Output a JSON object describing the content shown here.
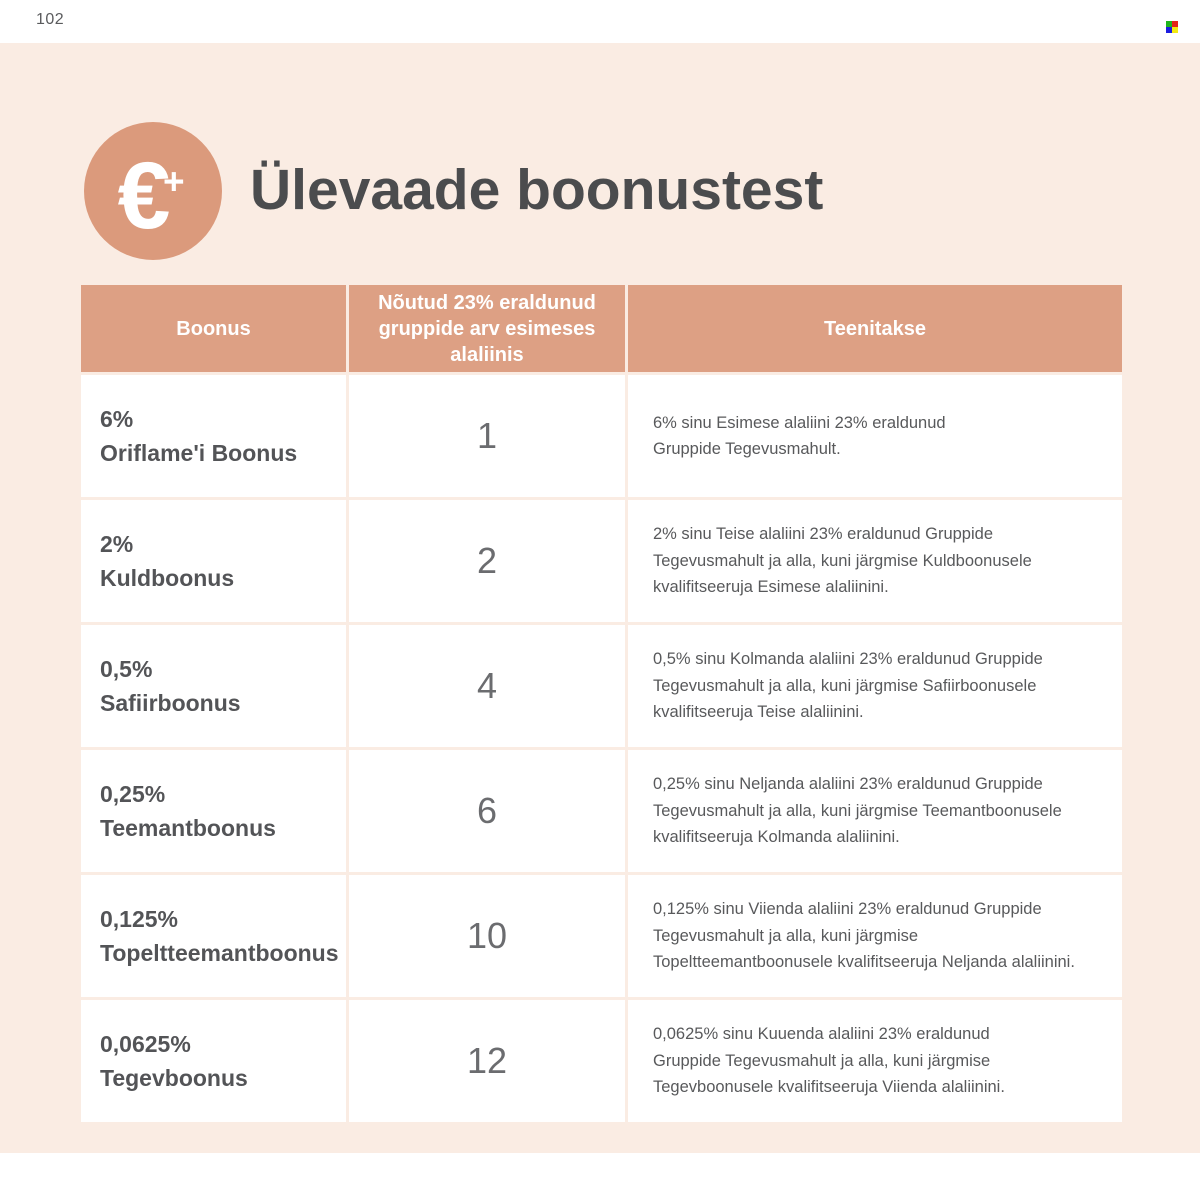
{
  "page": {
    "number": "102"
  },
  "title_section": {
    "icon": "euro-plus-icon",
    "icon_symbol": "€",
    "icon_plus": "+",
    "title": "Ülevaade boonustest"
  },
  "table": {
    "headers": {
      "bonus": "Boonus",
      "groups": "Nõutud 23% eraldunud\ngruppide arv esimeses\nalaliinis",
      "earned": "Teenitakse"
    },
    "rows": [
      {
        "bonus": "6%\nOriflame'i Boonus",
        "groups": "1",
        "earned": "6% sinu Esimese alaliini 23% eraldunud\nGruppide Tegevusmahult."
      },
      {
        "bonus": "2%\nKuldboonus",
        "groups": "2",
        "earned": "2% sinu Teise alaliini 23% eraldunud Gruppide\nTegevusmahult ja alla, kuni järgmise Kuldboonusele\nkvalifitseeruja Esimese alaliinini."
      },
      {
        "bonus": "0,5%\nSafiirboonus",
        "groups": "4",
        "earned": "0,5% sinu Kolmanda alaliini 23% eraldunud Gruppide\nTegevusmahult ja alla, kuni järgmise Safiirboonusele\nkvalifitseeruja Teise alaliinini."
      },
      {
        "bonus": "0,25%\nTeemantboonus",
        "groups": "6",
        "earned": "0,25% sinu Neljanda alaliini 23% eraldunud Gruppide\nTegevusmahult ja alla, kuni järgmise Teemantboonusele\nkvalifitseeruja Kolmanda alaliinini."
      },
      {
        "bonus": "0,125%\nTopeltteemantboonus",
        "groups": "10",
        "earned": "0,125% sinu Viienda alaliini 23% eraldunud Gruppide\nTegevusmahult ja alla, kuni järgmise\nTopeltteemantboonusele kvalifitseeruja Neljanda alaliinini."
      },
      {
        "bonus": "0,0625%\nTegevboonus",
        "groups": "12",
        "earned": "0,0625% sinu Kuuenda alaliini 23% eraldunud\nGruppide Tegevusmahult ja alla, kuni järgmise\nTegevboonusele kvalifitseeruja Viienda alaliinini."
      }
    ]
  },
  "colors": {
    "accent_header": "#dda084",
    "accent_icon": "#db9a7c",
    "page_background": "#faece3",
    "text_dark": "#4b4c4e",
    "text_gray": "#58595b"
  }
}
